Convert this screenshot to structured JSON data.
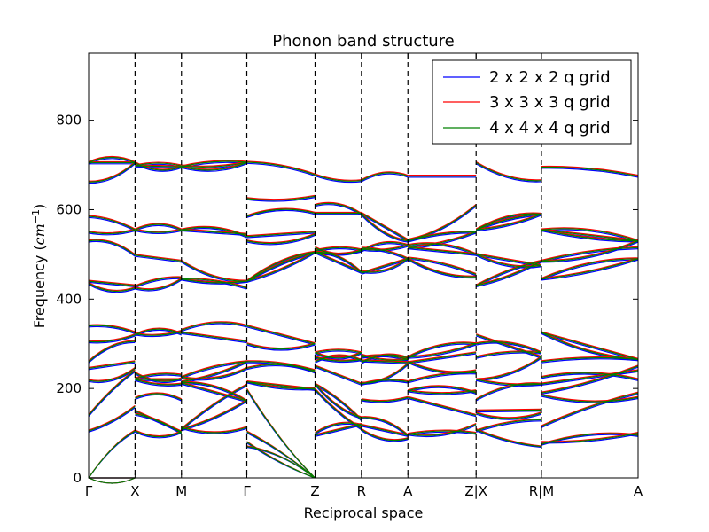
{
  "chart_data": {
    "type": "line",
    "title": "Phonon band structure",
    "xlabel": "Reciprocal space",
    "ylabel_main": "Frequency (",
    "ylabel_math": "cm",
    "ylabel_exp": "−1",
    "ylabel_close": ")",
    "ylim": [
      0,
      950
    ],
    "xlim": [
      0,
      11.6
    ],
    "grid": false,
    "legend_position": "top-right",
    "y_ticks": [
      {
        "value": 0,
        "label": "0"
      },
      {
        "value": 200,
        "label": "200"
      },
      {
        "value": 400,
        "label": "400"
      },
      {
        "value": 600,
        "label": "600"
      },
      {
        "value": 800,
        "label": "800"
      }
    ],
    "x_ticks": [
      {
        "x": 0,
        "label": "Γ"
      },
      {
        "x": 0.98,
        "label": "X"
      },
      {
        "x": 1.96,
        "label": "M"
      },
      {
        "x": 3.34,
        "label": "Γ"
      },
      {
        "x": 4.78,
        "label": "Z"
      },
      {
        "x": 5.76,
        "label": "R"
      },
      {
        "x": 6.74,
        "label": "A"
      },
      {
        "x": 8.18,
        "label": "Z|X"
      },
      {
        "x": 9.56,
        "label": "R|M"
      },
      {
        "x": 11.6,
        "label": "A"
      }
    ],
    "segments": [
      {
        "x0": 0,
        "x1": 0.98
      },
      {
        "x0": 0.98,
        "x1": 1.96
      },
      {
        "x0": 1.96,
        "x1": 3.34
      },
      {
        "x0": 3.34,
        "x1": 4.78
      },
      {
        "x0": 4.78,
        "x1": 5.76
      },
      {
        "x0": 5.76,
        "x1": 6.74
      },
      {
        "x0": 6.74,
        "x1": 8.18
      },
      {
        "x0": 8.18,
        "x1": 9.56
      },
      {
        "x0": 9.56,
        "x1": 11.6
      }
    ],
    "bands": [
      [
        [
          0,
          0
        ],
        [
          143,
          100
        ],
        [
          108,
          173
        ],
        [
          70,
          0
        ],
        [
          95,
          120
        ],
        [
          108,
          88
        ],
        [
          98,
          100
        ],
        [
          108,
          70
        ],
        [
          75,
          95
        ]
      ],
      [
        [
          0,
          0
        ],
        [
          105,
          103
        ],
        [
          109,
          208
        ],
        [
          80,
          0
        ],
        [
          100,
          118
        ],
        [
          118,
          95
        ],
        [
          98,
          120
        ],
        [
          105,
          130
        ],
        [
          80,
          100
        ]
      ],
      [
        [
          0,
          105
        ],
        [
          150,
          103
        ],
        [
          113,
          113
        ],
        [
          103,
          0
        ],
        [
          198,
          110
        ],
        [
          135,
          95
        ],
        [
          180,
          140
        ],
        [
          145,
          145
        ],
        [
          115,
          190
        ]
      ],
      [
        [
          105,
          160
        ],
        [
          178,
          175
        ],
        [
          212,
          172
        ],
        [
          198,
          0
        ],
        [
          210,
          130
        ],
        [
          175,
          180
        ],
        [
          195,
          190
        ],
        [
          150,
          152
        ],
        [
          185,
          180
        ]
      ],
      [
        [
          140,
          240
        ],
        [
          220,
          210
        ],
        [
          213,
          172
        ],
        [
          215,
          198
        ],
        [
          210,
          135
        ],
        [
          210,
          215
        ],
        [
          195,
          195
        ],
        [
          175,
          210
        ],
        [
          210,
          240
        ]
      ],
      [
        [
          218,
          245
        ],
        [
          222,
          230
        ],
        [
          215,
          260
        ],
        [
          245,
          237
        ],
        [
          250,
          210
        ],
        [
          212,
          255
        ],
        [
          215,
          235
        ],
        [
          220,
          210
        ],
        [
          225,
          220
        ]
      ],
      [
        [
          245,
          260
        ],
        [
          235,
          222
        ],
        [
          225,
          260
        ],
        [
          215,
          200
        ],
        [
          260,
          263
        ],
        [
          262,
          258
        ],
        [
          260,
          240
        ],
        [
          270,
          280
        ],
        [
          190,
          250
        ]
      ],
      [
        [
          260,
          305
        ],
        [
          220,
          220
        ],
        [
          225,
          245
        ],
        [
          260,
          240
        ],
        [
          270,
          265
        ],
        [
          258,
          268
        ],
        [
          258,
          280
        ],
        [
          220,
          270
        ],
        [
          260,
          265
        ]
      ],
      [
        [
          305,
          320
        ],
        [
          320,
          322
        ],
        [
          325,
          305
        ],
        [
          300,
          300
        ],
        [
          280,
          280
        ],
        [
          275,
          265
        ],
        [
          270,
          300
        ],
        [
          320,
          270
        ],
        [
          325,
          265
        ]
      ],
      [
        [
          340,
          325
        ],
        [
          322,
          328
        ],
        [
          330,
          340
        ],
        [
          340,
          300
        ],
        [
          280,
          280
        ],
        [
          270,
          265
        ],
        [
          270,
          300
        ],
        [
          300,
          280
        ],
        [
          325,
          265
        ]
      ],
      [
        [
          435,
          425
        ],
        [
          428,
          448
        ],
        [
          445,
          440
        ],
        [
          440,
          505
        ],
        [
          505,
          460
        ],
        [
          462,
          490
        ],
        [
          492,
          455
        ],
        [
          430,
          485
        ],
        [
          445,
          490
        ]
      ],
      [
        [
          440,
          430
        ],
        [
          425,
          445
        ],
        [
          445,
          425
        ],
        [
          440,
          505
        ],
        [
          505,
          460
        ],
        [
          458,
          490
        ],
        [
          490,
          450
        ],
        [
          430,
          485
        ],
        [
          445,
          490
        ]
      ],
      [
        [
          530,
          498
        ],
        [
          498,
          485
        ],
        [
          485,
          440
        ],
        [
          440,
          505
        ],
        [
          505,
          508
        ],
        [
          508,
          520
        ],
        [
          515,
          500
        ],
        [
          500,
          475
        ],
        [
          485,
          515
        ]
      ],
      [
        [
          550,
          555
        ],
        [
          555,
          555
        ],
        [
          555,
          545
        ],
        [
          530,
          545
        ],
        [
          508,
          510
        ],
        [
          512,
          520
        ],
        [
          520,
          500
        ],
        [
          500,
          475
        ],
        [
          485,
          530
        ]
      ],
      [
        [
          585,
          555
        ],
        [
          555,
          555
        ],
        [
          555,
          540
        ],
        [
          540,
          550
        ],
        [
          515,
          510
        ],
        [
          514,
          490
        ],
        [
          515,
          550
        ],
        [
          555,
          590
        ],
        [
          555,
          530
        ]
      ],
      [
        [
          662,
          705
        ],
        [
          698,
          698
        ],
        [
          698,
          706
        ],
        [
          585,
          592
        ],
        [
          592,
          592
        ],
        [
          590,
          530
        ],
        [
          530,
          550
        ],
        [
          555,
          590
        ],
        [
          555,
          530
        ]
      ],
      [
        [
          705,
          705
        ],
        [
          705,
          696
        ],
        [
          696,
          706
        ],
        [
          625,
          630
        ],
        [
          610,
          590
        ],
        [
          592,
          532
        ],
        [
          532,
          610
        ],
        [
          555,
          590
        ],
        [
          555,
          530
        ]
      ],
      [
        [
          705,
          705
        ],
        [
          698,
          696
        ],
        [
          696,
          705
        ],
        [
          706,
          678
        ],
        [
          678,
          665
        ],
        [
          665,
          675
        ],
        [
          675,
          675
        ],
        [
          705,
          665
        ],
        [
          695,
          675
        ]
      ]
    ],
    "series": [
      {
        "name": "2 x 2 x 2 q grid",
        "color": "#0000ff"
      },
      {
        "name": "3 x 3 x 3 q grid",
        "color": "#ff0000"
      },
      {
        "name": "4 x 4 x 4 q grid",
        "color": "#008000"
      }
    ]
  }
}
